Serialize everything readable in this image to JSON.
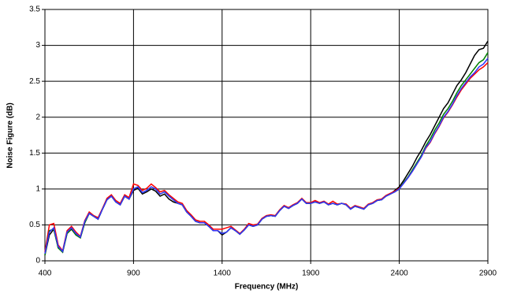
{
  "chart_data": {
    "type": "line",
    "x_label": "Frequency (MHz)",
    "y_label": "Noise Figure (dB)",
    "x": [
      400,
      425,
      450,
      475,
      500,
      525,
      550,
      575,
      600,
      625,
      650,
      675,
      700,
      725,
      750,
      775,
      800,
      825,
      850,
      875,
      900,
      925,
      950,
      975,
      1000,
      1025,
      1050,
      1075,
      1100,
      1125,
      1150,
      1175,
      1200,
      1225,
      1250,
      1275,
      1300,
      1325,
      1350,
      1375,
      1400,
      1425,
      1450,
      1475,
      1500,
      1525,
      1550,
      1575,
      1600,
      1625,
      1650,
      1675,
      1700,
      1725,
      1750,
      1775,
      1800,
      1825,
      1850,
      1875,
      1900,
      1925,
      1950,
      1975,
      2000,
      2025,
      2050,
      2075,
      2100,
      2125,
      2150,
      2175,
      2200,
      2225,
      2250,
      2275,
      2300,
      2325,
      2350,
      2375,
      2400,
      2425,
      2450,
      2475,
      2500,
      2525,
      2550,
      2575,
      2600,
      2625,
      2650,
      2675,
      2700,
      2725,
      2750,
      2775,
      2800,
      2825,
      2850,
      2875,
      2900
    ],
    "series": [
      {
        "color": "#000000",
        "values": [
          0.08,
          0.36,
          0.44,
          0.18,
          0.12,
          0.38,
          0.44,
          0.36,
          0.32,
          0.53,
          0.66,
          0.62,
          0.58,
          0.72,
          0.85,
          0.9,
          0.82,
          0.78,
          0.9,
          0.86,
          0.98,
          1.01,
          0.93,
          0.96,
          1.0,
          0.97,
          0.9,
          0.93,
          0.86,
          0.82,
          0.8,
          0.78,
          0.68,
          0.62,
          0.55,
          0.53,
          0.53,
          0.48,
          0.42,
          0.42,
          0.36,
          0.4,
          0.46,
          0.42,
          0.37,
          0.43,
          0.5,
          0.48,
          0.5,
          0.58,
          0.62,
          0.63,
          0.62,
          0.7,
          0.76,
          0.73,
          0.77,
          0.8,
          0.86,
          0.8,
          0.8,
          0.82,
          0.8,
          0.82,
          0.78,
          0.8,
          0.78,
          0.8,
          0.78,
          0.72,
          0.76,
          0.74,
          0.72,
          0.78,
          0.8,
          0.84,
          0.85,
          0.9,
          0.93,
          0.98,
          1.03,
          1.12,
          1.22,
          1.32,
          1.44,
          1.54,
          1.66,
          1.76,
          1.88,
          2.0,
          2.12,
          2.2,
          2.32,
          2.44,
          2.52,
          2.62,
          2.74,
          2.86,
          2.94,
          2.96,
          3.06
        ]
      },
      {
        "color": "#ff0000",
        "values": [
          0.12,
          0.5,
          0.52,
          0.22,
          0.14,
          0.42,
          0.48,
          0.4,
          0.34,
          0.56,
          0.68,
          0.63,
          0.6,
          0.73,
          0.87,
          0.92,
          0.84,
          0.8,
          0.92,
          0.88,
          1.07,
          1.05,
          0.98,
          1.01,
          1.07,
          1.02,
          0.96,
          0.98,
          0.92,
          0.87,
          0.82,
          0.8,
          0.7,
          0.64,
          0.57,
          0.55,
          0.55,
          0.5,
          0.44,
          0.44,
          0.44,
          0.46,
          0.48,
          0.43,
          0.38,
          0.44,
          0.52,
          0.5,
          0.51,
          0.59,
          0.63,
          0.64,
          0.63,
          0.71,
          0.77,
          0.74,
          0.78,
          0.81,
          0.87,
          0.81,
          0.81,
          0.84,
          0.81,
          0.83,
          0.79,
          0.83,
          0.79,
          0.8,
          0.79,
          0.73,
          0.77,
          0.75,
          0.73,
          0.79,
          0.81,
          0.85,
          0.86,
          0.91,
          0.94,
          0.97,
          1.01,
          1.08,
          1.16,
          1.25,
          1.35,
          1.45,
          1.57,
          1.65,
          1.77,
          1.87,
          1.99,
          2.07,
          2.17,
          2.28,
          2.38,
          2.46,
          2.54,
          2.6,
          2.66,
          2.7,
          2.76
        ]
      },
      {
        "color": "#008000",
        "values": [
          0.08,
          0.42,
          0.44,
          0.18,
          0.12,
          0.38,
          0.45,
          0.36,
          0.32,
          0.53,
          0.66,
          0.62,
          0.58,
          0.72,
          0.85,
          0.9,
          0.82,
          0.78,
          0.9,
          0.86,
          1.0,
          1.03,
          0.95,
          0.98,
          1.03,
          1.0,
          0.93,
          0.96,
          0.9,
          0.85,
          0.8,
          0.78,
          0.68,
          0.62,
          0.55,
          0.53,
          0.53,
          0.48,
          0.42,
          0.42,
          0.38,
          0.4,
          0.46,
          0.42,
          0.37,
          0.43,
          0.5,
          0.48,
          0.5,
          0.58,
          0.62,
          0.63,
          0.62,
          0.7,
          0.76,
          0.73,
          0.77,
          0.8,
          0.86,
          0.8,
          0.8,
          0.82,
          0.8,
          0.82,
          0.78,
          0.8,
          0.78,
          0.8,
          0.78,
          0.72,
          0.76,
          0.74,
          0.72,
          0.78,
          0.8,
          0.84,
          0.85,
          0.9,
          0.93,
          0.96,
          1.0,
          1.09,
          1.17,
          1.27,
          1.37,
          1.47,
          1.6,
          1.7,
          1.82,
          1.92,
          2.04,
          2.12,
          2.22,
          2.34,
          2.44,
          2.52,
          2.6,
          2.68,
          2.76,
          2.8,
          2.9
        ]
      },
      {
        "color": "#3333ff",
        "values": [
          0.1,
          0.4,
          0.46,
          0.2,
          0.13,
          0.4,
          0.46,
          0.38,
          0.33,
          0.55,
          0.66,
          0.62,
          0.58,
          0.72,
          0.85,
          0.9,
          0.82,
          0.78,
          0.9,
          0.86,
          1.0,
          1.03,
          0.95,
          0.98,
          1.03,
          1.0,
          0.93,
          0.96,
          0.9,
          0.85,
          0.8,
          0.78,
          0.68,
          0.62,
          0.55,
          0.53,
          0.53,
          0.48,
          0.42,
          0.42,
          0.38,
          0.4,
          0.46,
          0.42,
          0.37,
          0.43,
          0.5,
          0.48,
          0.5,
          0.58,
          0.62,
          0.63,
          0.62,
          0.7,
          0.76,
          0.73,
          0.77,
          0.8,
          0.86,
          0.8,
          0.8,
          0.82,
          0.8,
          0.82,
          0.78,
          0.8,
          0.78,
          0.8,
          0.78,
          0.72,
          0.76,
          0.74,
          0.72,
          0.78,
          0.8,
          0.84,
          0.85,
          0.9,
          0.93,
          0.96,
          1.0,
          1.08,
          1.16,
          1.25,
          1.35,
          1.45,
          1.58,
          1.66,
          1.78,
          1.88,
          2.0,
          2.08,
          2.18,
          2.3,
          2.4,
          2.48,
          2.56,
          2.62,
          2.7,
          2.74,
          2.82
        ]
      }
    ],
    "xlim": [
      400,
      2900
    ],
    "xticks": [
      400,
      900,
      1400,
      1900,
      2400,
      2900
    ],
    "ylim": [
      0,
      3.5
    ],
    "yticks": [
      0,
      0.5,
      1,
      1.5,
      2,
      2.5,
      3,
      3.5
    ],
    "grid": true
  }
}
